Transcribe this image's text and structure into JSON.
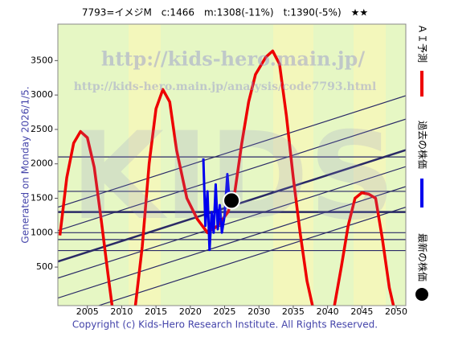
{
  "chart_data": {
    "type": "line",
    "title": "7793=イメジM　c:1466　m:1308(-11%)　t:1390(-5%)　★★",
    "generated": "Generated on Monday 2026/1/5.",
    "copyright": "Copyright (c) Kids-Hero Research Institute. All Rights Reserved.",
    "watermarks": [
      "KIDS",
      "http://kids-hero.main.jp/",
      "http://kids-hero.main.jp/analysis/code7793.html"
    ],
    "xlim": [
      2000.7,
      2051.4
    ],
    "ylim": [
      -60,
      4030
    ],
    "xticks": [
      2005,
      2010,
      2015,
      2020,
      2025,
      2030,
      2035,
      2040,
      2045,
      2050
    ],
    "yticks": [
      500,
      1000,
      1500,
      2000,
      2500,
      3000,
      3500
    ],
    "series": [
      {
        "name": "ＡＩ予測",
        "color": "#ee0000",
        "style": "line",
        "x": [
          2001,
          2002,
          2003,
          2004,
          2005,
          2006,
          2007,
          2008,
          2008.6,
          2010,
          2012,
          2013,
          2014,
          2015,
          2016,
          2017,
          2018,
          2019.5,
          2021,
          2022.5,
          2024,
          2025.5,
          2026.5,
          2027.5,
          2028.5,
          2029.5,
          2031,
          2032,
          2033,
          2034,
          2035,
          2036,
          2037,
          2037.8,
          2039,
          2041,
          2042,
          2043,
          2044,
          2045,
          2046,
          2047,
          2048,
          2049,
          2049.6
        ],
        "values": [
          960,
          1800,
          2300,
          2470,
          2380,
          1950,
          1200,
          400,
          -60,
          null,
          -60,
          800,
          2000,
          2800,
          3080,
          2900,
          2200,
          1500,
          1200,
          1000,
          1100,
          1300,
          1600,
          2300,
          2900,
          3300,
          3550,
          3640,
          3450,
          2700,
          1800,
          1000,
          300,
          -60,
          null,
          -60,
          500,
          1100,
          1500,
          1580,
          1560,
          1500,
          900,
          200,
          -60
        ]
      },
      {
        "name": "過去の株価",
        "color": "#0000ee",
        "style": "line",
        "x": [
          2021.9,
          2022.2,
          2022.5,
          2022.8,
          2023.1,
          2023.4,
          2023.7,
          2024,
          2024.3,
          2024.6,
          2025,
          2025.4,
          2025.7
        ],
        "values": [
          2080,
          1100,
          1600,
          750,
          1300,
          1000,
          1700,
          1050,
          1400,
          1000,
          1250,
          1850,
          1466
        ]
      },
      {
        "name": "最新の株価",
        "color": "#000000",
        "style": "dot",
        "x": [
          2026
        ],
        "values": [
          1466
        ]
      }
    ],
    "trend_color": "#2a2a66",
    "trend_lines": [
      [
        1370,
        2990
      ],
      [
        1030,
        2650
      ],
      [
        580,
        2200
      ],
      [
        340,
        1960
      ],
      [
        50,
        1670
      ],
      [
        -250,
        1370
      ]
    ],
    "hlines": [
      2100,
      1600,
      1300,
      1000,
      900,
      740
    ]
  }
}
